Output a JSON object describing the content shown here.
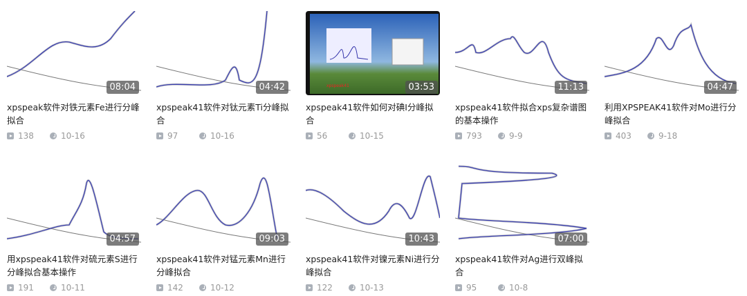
{
  "videos": [
    {
      "title": "xpspeak软件对铁元素Fe进行分峰拟合",
      "duration": "08:04",
      "views": "138",
      "date": "10-16"
    },
    {
      "title": "xpspeak41软件对钛元素Ti分峰拟合",
      "duration": "04:42",
      "views": "97",
      "date": "10-16"
    },
    {
      "title": "xpspeak41软件如何对碘I分峰拟合",
      "duration": "03:53",
      "views": "56",
      "date": "10-15"
    },
    {
      "title": "xpspeak41软件拟合xps复杂谱图的基本操作",
      "duration": "11:13",
      "views": "793",
      "date": "9-9"
    },
    {
      "title": "利用XPSPEAK41软件对Mo进行分峰拟合",
      "duration": "04:47",
      "views": "403",
      "date": "9-18"
    },
    {
      "title": "用xpspeak41软件对硫元素S进行分峰拟合基本操作",
      "duration": "04:57",
      "views": "191",
      "date": "10-11"
    },
    {
      "title": "xpspeak41软件对锰元素Mn进行分峰拟合",
      "duration": "09:03",
      "views": "142",
      "date": "10-12"
    },
    {
      "title": "xpspeak41软件对镍元素Ni进行分峰拟合",
      "duration": "10:43",
      "views": "122",
      "date": "10-13"
    },
    {
      "title": "xpspeak41软件对Ag进行双峰拟合",
      "duration": "07:00",
      "views": "95",
      "date": "10-8"
    }
  ],
  "icons": {
    "views": "play-icon",
    "date": "clock-icon"
  },
  "colors": {
    "spectrum": "#3a3fb0",
    "duration_bg": "#505050"
  }
}
